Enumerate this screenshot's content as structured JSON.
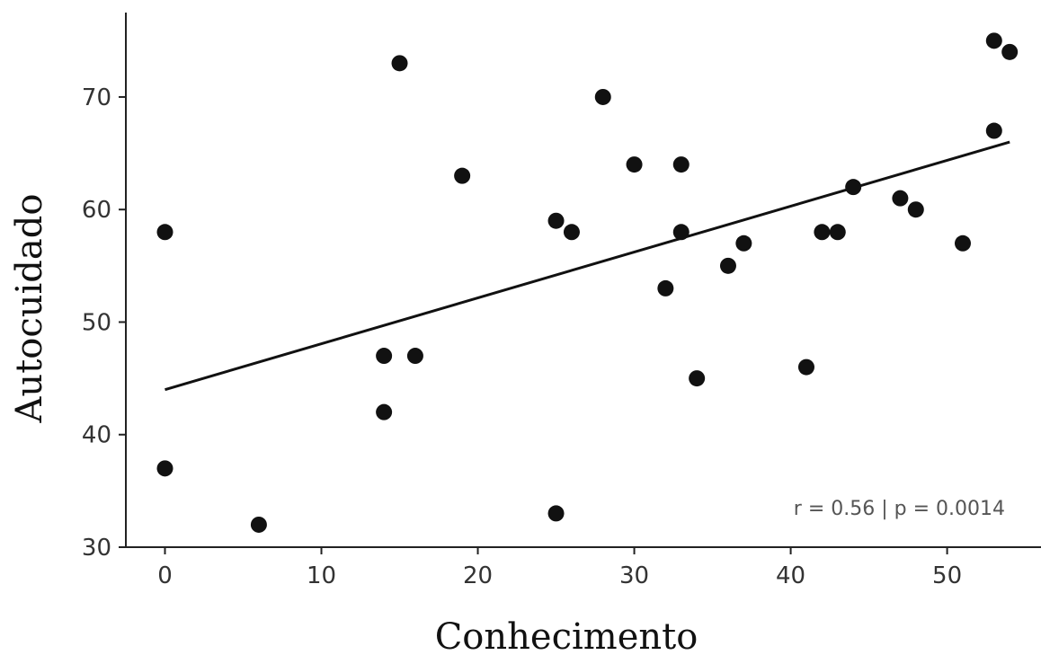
{
  "chart_data": {
    "type": "scatter",
    "xlabel": "Conhecimento",
    "ylabel": "Autocuidado",
    "xlim": [
      -2.5,
      56
    ],
    "ylim": [
      30,
      77.5
    ],
    "xticks": [
      0,
      10,
      20,
      30,
      40,
      50
    ],
    "yticks": [
      30,
      40,
      50,
      60,
      70
    ],
    "xtick_labels": [
      "0",
      "10",
      "20",
      "30",
      "40",
      "50"
    ],
    "ytick_labels": [
      "30",
      "40",
      "50",
      "60",
      "70"
    ],
    "grid": false,
    "series": [
      {
        "points": [
          {
            "x": 0,
            "y": 58
          },
          {
            "x": 0,
            "y": 37
          },
          {
            "x": 6,
            "y": 32
          },
          {
            "x": 14,
            "y": 47
          },
          {
            "x": 14,
            "y": 42
          },
          {
            "x": 15,
            "y": 73
          },
          {
            "x": 16,
            "y": 47
          },
          {
            "x": 19,
            "y": 63
          },
          {
            "x": 25,
            "y": 59
          },
          {
            "x": 25,
            "y": 33
          },
          {
            "x": 26,
            "y": 58
          },
          {
            "x": 28,
            "y": 70
          },
          {
            "x": 30,
            "y": 64
          },
          {
            "x": 32,
            "y": 53
          },
          {
            "x": 33,
            "y": 64
          },
          {
            "x": 33,
            "y": 58
          },
          {
            "x": 34,
            "y": 45
          },
          {
            "x": 36,
            "y": 55
          },
          {
            "x": 37,
            "y": 57
          },
          {
            "x": 41,
            "y": 46
          },
          {
            "x": 42,
            "y": 58
          },
          {
            "x": 43,
            "y": 58
          },
          {
            "x": 44,
            "y": 62
          },
          {
            "x": 47,
            "y": 61
          },
          {
            "x": 48,
            "y": 60
          },
          {
            "x": 51,
            "y": 57
          },
          {
            "x": 53,
            "y": 75
          },
          {
            "x": 53,
            "y": 67
          },
          {
            "x": 54,
            "y": 74
          }
        ]
      }
    ],
    "trendline": {
      "x": [
        0,
        54
      ],
      "y": [
        44,
        66
      ]
    },
    "annotation": "r = 0.56 | p = 0.0014",
    "colors": {
      "points": "#111111",
      "line": "#111111",
      "axes": "#222222"
    }
  }
}
